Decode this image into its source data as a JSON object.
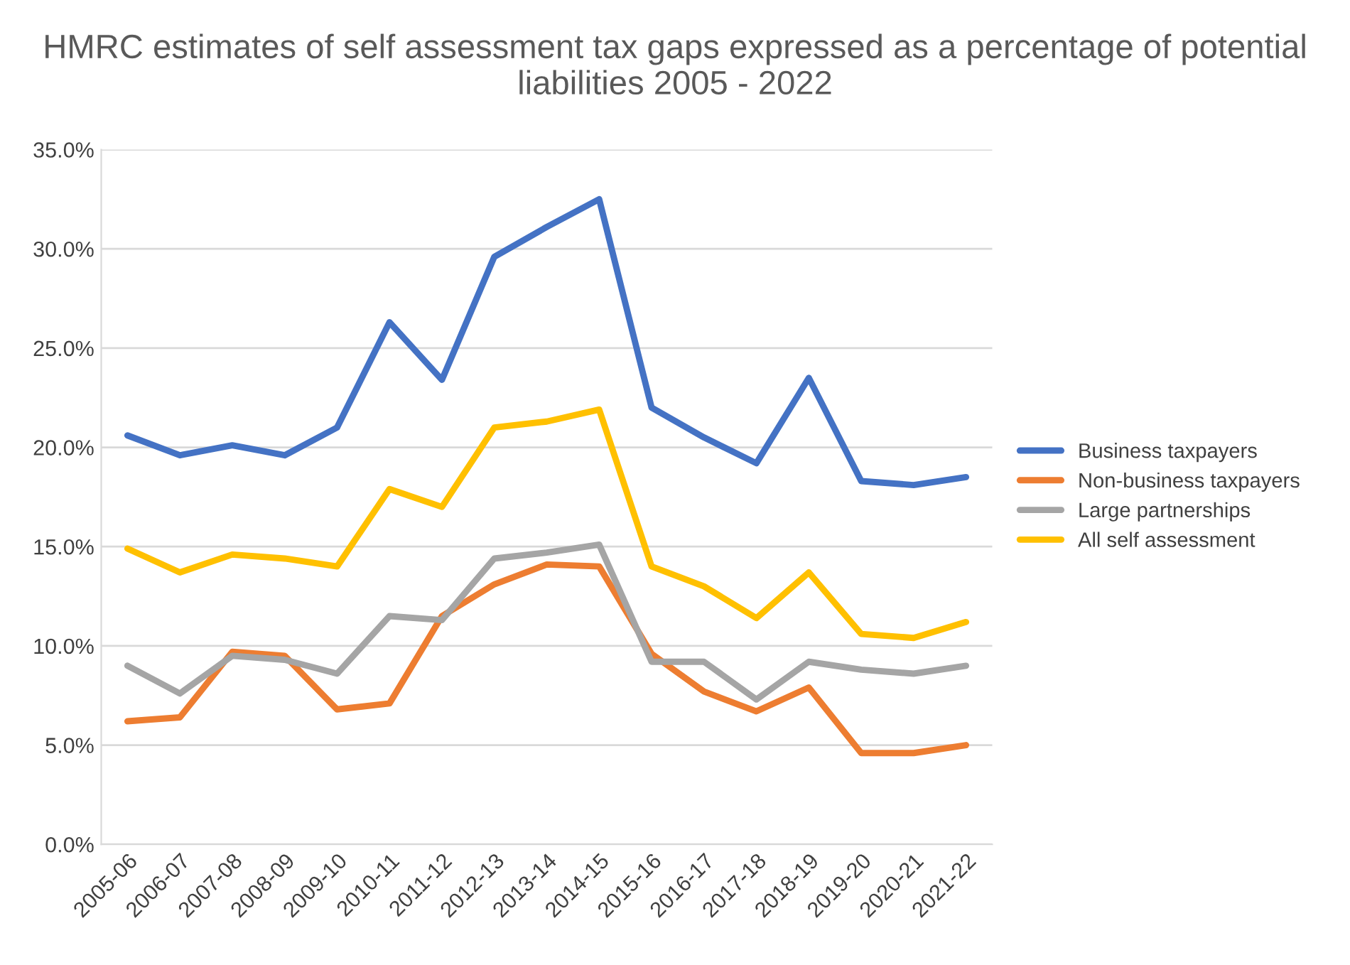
{
  "chart_data": {
    "type": "line",
    "title": "HMRC estimates of self assessment tax gaps expressed as a percentage of potential liabilities 2005 - 2022",
    "categories": [
      "2005-06",
      "2006-07",
      "2007-08",
      "2008-09",
      "2009-10",
      "2010-11",
      "2011-12",
      "2012-13",
      "2013-14",
      "2014-15",
      "2015-16",
      "2016-17",
      "2017-18",
      "2018-19",
      "2019-20",
      "2020-21",
      "2021-22"
    ],
    "series": [
      {
        "name": "Business taxpayers",
        "color": "#4472c4",
        "values": [
          20.6,
          19.6,
          20.1,
          19.6,
          21.0,
          26.3,
          23.4,
          29.6,
          31.1,
          32.5,
          22.0,
          20.5,
          19.2,
          23.5,
          18.3,
          18.1,
          18.5
        ]
      },
      {
        "name": "Non-business taxpayers",
        "color": "#ed7d31",
        "values": [
          6.2,
          6.4,
          9.7,
          9.5,
          6.8,
          7.1,
          11.5,
          13.1,
          14.1,
          14.0,
          9.6,
          7.7,
          6.7,
          7.9,
          4.6,
          4.6,
          5.0
        ]
      },
      {
        "name": "Large partnerships",
        "color": "#a5a5a5",
        "values": [
          9.0,
          7.6,
          9.5,
          9.3,
          8.6,
          11.5,
          11.3,
          14.4,
          14.7,
          15.1,
          9.2,
          9.2,
          7.3,
          9.2,
          8.8,
          8.6,
          9.0
        ]
      },
      {
        "name": "All self assessment",
        "color": "#ffc000",
        "values": [
          14.9,
          13.7,
          14.6,
          14.4,
          14.0,
          17.9,
          17.0,
          21.0,
          21.3,
          21.9,
          14.0,
          13.0,
          11.4,
          13.7,
          10.6,
          10.4,
          11.2
        ]
      }
    ],
    "ylim": [
      0,
      35
    ],
    "yticks": [
      {
        "value": 0,
        "label": "0.0%"
      },
      {
        "value": 5,
        "label": "5.0%"
      },
      {
        "value": 10,
        "label": "10.0%"
      },
      {
        "value": 15,
        "label": "15.0%"
      },
      {
        "value": 20,
        "label": "20.0%"
      },
      {
        "value": 25,
        "label": "25.0%"
      },
      {
        "value": 30,
        "label": "30.0%"
      },
      {
        "value": 35,
        "label": "35.0%"
      }
    ],
    "grid": "y",
    "legend": "right",
    "marker": "none",
    "line_style": "solid"
  }
}
